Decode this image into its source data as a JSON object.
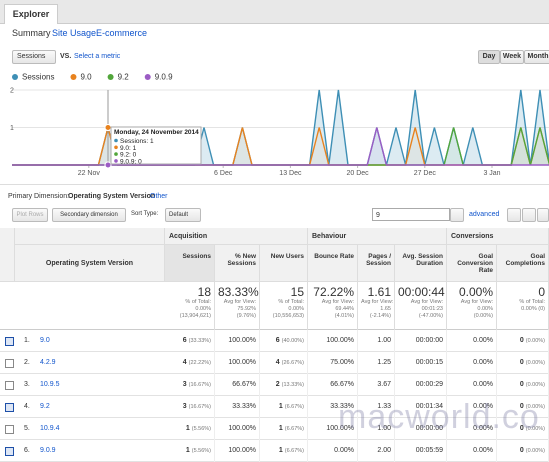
{
  "header": {
    "tab": "Explorer",
    "subtabs": [
      "Summary",
      "Site Usage",
      "E-commerce"
    ]
  },
  "controls": {
    "metric": "Sessions",
    "vs": "VS.",
    "select": "Select a metric",
    "periods": [
      "Day",
      "Week",
      "Month"
    ]
  },
  "chart_data": {
    "type": "line",
    "categories": [
      null,
      null,
      null,
      null,
      null,
      null,
      null,
      null,
      "22 Nov",
      null,
      null,
      null,
      null,
      null,
      null,
      null,
      null,
      null,
      null,
      null,
      null,
      null,
      "6 Dec",
      null,
      null,
      null,
      null,
      null,
      null,
      "13 Dec",
      null,
      null,
      null,
      null,
      null,
      null,
      "20 Dec",
      null,
      null,
      null,
      null,
      null,
      null,
      "27 Dec",
      null,
      null,
      null,
      null,
      null,
      null,
      "3 Jan",
      null,
      null,
      null,
      null,
      null,
      null
    ],
    "series": [
      {
        "name": "Sessions",
        "color": "#3e8fb5",
        "values": [
          0,
          0,
          0,
          0,
          0,
          0,
          0,
          0,
          0,
          0,
          1,
          0,
          0,
          0,
          0,
          0,
          0,
          0,
          0,
          0,
          1,
          0,
          0,
          0,
          1,
          0,
          0,
          0,
          0,
          0,
          0,
          0,
          2,
          0,
          2,
          0,
          0,
          0,
          1,
          0,
          1,
          0,
          2,
          0,
          1,
          0,
          1,
          0,
          1,
          0,
          0,
          0,
          0,
          2,
          0,
          2,
          0
        ]
      },
      {
        "name": "9.0",
        "color": "#e8821e",
        "values": [
          0,
          0,
          0,
          0,
          0,
          0,
          0,
          0,
          0,
          0,
          1,
          0,
          0,
          0,
          0,
          0,
          0,
          0,
          0,
          0,
          0,
          0,
          0,
          0,
          1,
          0,
          0,
          0,
          0,
          0,
          0,
          0,
          1,
          0,
          0,
          0,
          0,
          0,
          0,
          0,
          0,
          0,
          1,
          0,
          0,
          0,
          0,
          0,
          0,
          0,
          0,
          0,
          0,
          1,
          0,
          1,
          0
        ]
      },
      {
        "name": "9.2",
        "color": "#52a63b",
        "values": [
          0,
          0,
          0,
          0,
          0,
          0,
          0,
          0,
          0,
          0,
          0,
          0,
          0,
          0,
          0,
          0,
          0,
          0,
          0,
          0,
          0,
          0,
          0,
          0,
          0,
          0,
          0,
          0,
          0,
          0,
          0,
          0,
          0,
          0,
          0,
          0,
          0,
          0,
          0,
          0,
          0,
          0,
          0,
          0,
          0,
          0,
          1,
          0,
          0,
          0,
          0,
          0,
          0,
          1,
          0,
          1,
          0
        ]
      },
      {
        "name": "9.0.9",
        "color": "#9b5cc4",
        "values": [
          0,
          0,
          0,
          0,
          0,
          0,
          0,
          0,
          0,
          0,
          0,
          0,
          0,
          0,
          0,
          0,
          0,
          0,
          0,
          0,
          0,
          0,
          0,
          0,
          0,
          0,
          0,
          0,
          0,
          0,
          0,
          0,
          0,
          0,
          0,
          0,
          0,
          0,
          1,
          0,
          0,
          0,
          0,
          0,
          0,
          0,
          0,
          0,
          0,
          0,
          0,
          0,
          0,
          0,
          0,
          0,
          0
        ]
      }
    ],
    "ylim": [
      0,
      2
    ],
    "yticks": [
      1,
      2
    ],
    "grid": true,
    "tooltip": {
      "index": 10,
      "title": "Monday, 24 November 2014",
      "lines": [
        "Sessions: 1",
        "9.0: 1",
        "9.2: 0",
        "9.0.9: 0"
      ]
    }
  },
  "dimension": {
    "label": "Primary Dimension:",
    "value": "Operating System Version",
    "other": "Other"
  },
  "toolbar": {
    "plot": "Plot Rows",
    "secondary": "Secondary dimension",
    "sort_label": "Sort Type:",
    "sort": "Default",
    "search": "9",
    "advanced": "advanced"
  },
  "table": {
    "groups": [
      "Acquisition",
      "Behaviour",
      "Conversions"
    ],
    "dim_header": "Operating System Version",
    "columns": [
      "Sessions",
      "% New Sessions",
      "New Users",
      "Bounce Rate",
      "Pages / Session",
      "Avg. Session Duration",
      "Goal Conversion Rate",
      "Goal Completions"
    ],
    "totals": [
      [
        "18",
        "% of Total:",
        "0.00%",
        "(13,904,621)"
      ],
      [
        "83.33%",
        "Avg for View:",
        "75.92%",
        "(9.76%)"
      ],
      [
        "15",
        "% of Total:",
        "0.00%",
        "(10,556,653)"
      ],
      [
        "72.22%",
        "Avg for View:",
        "69.44%",
        "(4.01%)"
      ],
      [
        "1.61",
        "Avg for View:",
        "1.65",
        "(-2.14%)"
      ],
      [
        "00:00:44",
        "Avg for View:",
        "00:01:23",
        "(-47.00%)"
      ],
      [
        "0.00%",
        "Avg for View:",
        "0.00%",
        "(0.00%)"
      ],
      [
        "0",
        "% of Total:",
        "0.00% (0)"
      ]
    ],
    "rows": [
      {
        "rank": "1.",
        "name": "9.0",
        "checked": true,
        "cells": [
          [
            "6",
            "(33.33%)"
          ],
          [
            "100.00%"
          ],
          [
            "6",
            "(40.00%)"
          ],
          [
            "100.00%"
          ],
          [
            "1.00"
          ],
          [
            "00:00:00"
          ],
          [
            "0.00%"
          ],
          [
            "0",
            "(0.00%)"
          ]
        ]
      },
      {
        "rank": "2.",
        "name": "4.2.9",
        "checked": false,
        "cells": [
          [
            "4",
            "(22.22%)"
          ],
          [
            "100.00%"
          ],
          [
            "4",
            "(26.67%)"
          ],
          [
            "75.00%"
          ],
          [
            "1.25"
          ],
          [
            "00:00:15"
          ],
          [
            "0.00%"
          ],
          [
            "0",
            "(0.00%)"
          ]
        ]
      },
      {
        "rank": "3.",
        "name": "10.9.5",
        "checked": false,
        "cells": [
          [
            "3",
            "(16.67%)"
          ],
          [
            "66.67%"
          ],
          [
            "2",
            "(13.33%)"
          ],
          [
            "66.67%"
          ],
          [
            "3.67"
          ],
          [
            "00:00:29"
          ],
          [
            "0.00%"
          ],
          [
            "0",
            "(0.00%)"
          ]
        ]
      },
      {
        "rank": "4.",
        "name": "9.2",
        "checked": true,
        "cells": [
          [
            "3",
            "(16.67%)"
          ],
          [
            "33.33%"
          ],
          [
            "1",
            "(6.67%)"
          ],
          [
            "33.33%"
          ],
          [
            "1.33"
          ],
          [
            "00:01:34"
          ],
          [
            "0.00%"
          ],
          [
            "0",
            "(0.00%)"
          ]
        ]
      },
      {
        "rank": "5.",
        "name": "10.9.4",
        "checked": false,
        "cells": [
          [
            "1",
            "(5.56%)"
          ],
          [
            "100.00%"
          ],
          [
            "1",
            "(6.67%)"
          ],
          [
            "100.00%"
          ],
          [
            "1.00"
          ],
          [
            "00:00:00"
          ],
          [
            "0.00%"
          ],
          [
            "0",
            "(0.00%)"
          ]
        ]
      },
      {
        "rank": "6.",
        "name": "9.0.9",
        "checked": true,
        "cells": [
          [
            "1",
            "(5.56%)"
          ],
          [
            "100.00%"
          ],
          [
            "1",
            "(6.67%)"
          ],
          [
            "0.00%"
          ],
          [
            "2.00"
          ],
          [
            "00:05:59"
          ],
          [
            "0.00%"
          ],
          [
            "0",
            "(0.00%)"
          ]
        ]
      }
    ]
  },
  "watermark": "macworld.co"
}
